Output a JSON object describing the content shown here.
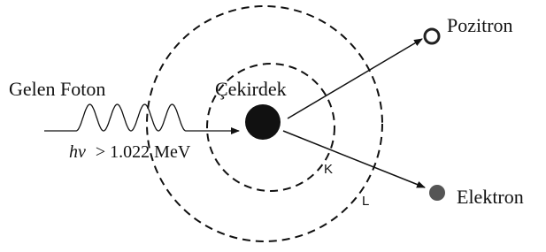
{
  "labels": {
    "incoming": "Gelen Foton",
    "nucleus": "Çekirdek",
    "energy_symbol": "hv",
    "energy_condition": "> 1.022 MeV",
    "positron": "Pozitron",
    "electron": "Elektron",
    "shell_k": "K",
    "shell_l": "L"
  }
}
